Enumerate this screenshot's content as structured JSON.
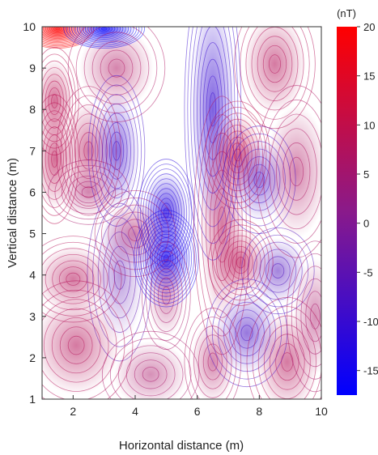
{
  "chart_data": {
    "type": "heatmap",
    "subtype": "contour",
    "xlabel": "Horizontal distance (m)",
    "ylabel": "Vertical distance (m)",
    "xlim": [
      1,
      10
    ],
    "ylim": [
      1,
      10
    ],
    "xticks": [
      2,
      4,
      6,
      8,
      10
    ],
    "yticks": [
      1,
      2,
      3,
      4,
      5,
      6,
      7,
      8,
      9,
      10
    ],
    "colorbar": {
      "label": "(nT)",
      "range": [
        -17.5,
        20
      ],
      "ticks": [
        20,
        15,
        10,
        5,
        0,
        -5,
        -10,
        -15
      ],
      "colors": [
        "#0000ff",
        "#8a1a8a",
        "#ff0000"
      ]
    },
    "grid": false,
    "anomalies": [
      {
        "x": 1.5,
        "y": 9.95,
        "v": 20,
        "sx": 0.45,
        "sy": 0.18
      },
      {
        "x": 3.0,
        "y": 9.95,
        "v": -17,
        "sx": 0.5,
        "sy": 0.18
      },
      {
        "x": 1.4,
        "y": 8.2,
        "v": 9,
        "sx": 0.3,
        "sy": 0.5
      },
      {
        "x": 1.4,
        "y": 6.8,
        "v": 9,
        "sx": 0.3,
        "sy": 0.6
      },
      {
        "x": 2.5,
        "y": 7.0,
        "v": 8,
        "sx": 0.4,
        "sy": 0.6
      },
      {
        "x": 3.4,
        "y": 7.0,
        "v": -9,
        "sx": 0.35,
        "sy": 0.7
      },
      {
        "x": 2.5,
        "y": 6.0,
        "v": 6,
        "sx": 0.5,
        "sy": 0.3
      },
      {
        "x": 3.4,
        "y": 9.0,
        "v": 7,
        "sx": 0.6,
        "sy": 0.5
      },
      {
        "x": 4.0,
        "y": 5.0,
        "v": 7,
        "sx": 0.5,
        "sy": 0.4
      },
      {
        "x": 5.0,
        "y": 5.5,
        "v": -12,
        "sx": 0.35,
        "sy": 0.5
      },
      {
        "x": 5.0,
        "y": 4.4,
        "v": -15,
        "sx": 0.4,
        "sy": 0.45
      },
      {
        "x": 5.0,
        "y": 3.5,
        "v": 6,
        "sx": 0.3,
        "sy": 0.5
      },
      {
        "x": 2.0,
        "y": 3.9,
        "v": 8,
        "sx": 0.6,
        "sy": 0.4
      },
      {
        "x": 3.5,
        "y": 4.0,
        "v": -5,
        "sx": 0.4,
        "sy": 0.8
      },
      {
        "x": 2.1,
        "y": 2.3,
        "v": 8,
        "sx": 0.7,
        "sy": 0.6
      },
      {
        "x": 4.5,
        "y": 1.6,
        "v": 6,
        "sx": 0.6,
        "sy": 0.4
      },
      {
        "x": 6.5,
        "y": 8.0,
        "v": -10,
        "sx": 0.35,
        "sy": 1.4
      },
      {
        "x": 6.8,
        "y": 5.2,
        "v": 8,
        "sx": 0.35,
        "sy": 1.2
      },
      {
        "x": 7.3,
        "y": 6.9,
        "v": 10,
        "sx": 0.4,
        "sy": 0.5
      },
      {
        "x": 8.0,
        "y": 6.3,
        "v": -8,
        "sx": 0.45,
        "sy": 0.5
      },
      {
        "x": 7.4,
        "y": 4.3,
        "v": 9,
        "sx": 0.4,
        "sy": 0.4
      },
      {
        "x": 8.6,
        "y": 4.1,
        "v": -7,
        "sx": 0.45,
        "sy": 0.4
      },
      {
        "x": 9.2,
        "y": 6.5,
        "v": 7,
        "sx": 0.5,
        "sy": 0.8
      },
      {
        "x": 8.5,
        "y": 9.1,
        "v": 8,
        "sx": 0.5,
        "sy": 0.6
      },
      {
        "x": 7.6,
        "y": 2.6,
        "v": -8,
        "sx": 0.5,
        "sy": 0.5
      },
      {
        "x": 8.9,
        "y": 1.9,
        "v": 8,
        "sx": 0.5,
        "sy": 0.6
      },
      {
        "x": 6.5,
        "y": 1.9,
        "v": 7,
        "sx": 0.35,
        "sy": 0.5
      },
      {
        "x": 9.8,
        "y": 3.0,
        "v": 6,
        "sx": 0.35,
        "sy": 0.7
      }
    ]
  }
}
